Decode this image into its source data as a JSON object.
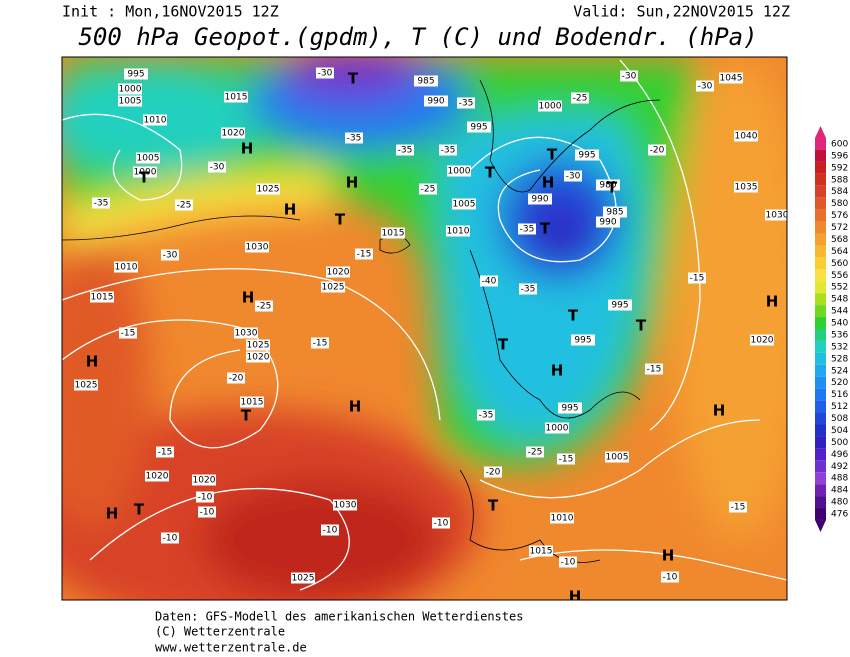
{
  "header": {
    "init": "Init : Mon,16NOV2015 12Z",
    "valid": "Valid: Sun,22NOV2015 12Z",
    "title": "500 hPa Geopot.(gpdm), T (C) und Bodendr. (hPa)"
  },
  "colorbar": {
    "ticks": [
      600,
      596,
      592,
      588,
      584,
      580,
      576,
      572,
      568,
      564,
      560,
      556,
      552,
      548,
      544,
      540,
      536,
      532,
      528,
      524,
      520,
      516,
      512,
      508,
      504,
      500,
      496,
      492,
      488,
      484,
      480,
      476
    ],
    "colors": [
      "#e0267a",
      "#c0103a",
      "#c81e1e",
      "#d03020",
      "#d84228",
      "#e05a28",
      "#e8702a",
      "#f0882e",
      "#f5a030",
      "#f8b830",
      "#fad030",
      "#fae040",
      "#e0e830",
      "#a8e020",
      "#70d820",
      "#30d030",
      "#20d080",
      "#20d0c0",
      "#20c0e0",
      "#20a8f0",
      "#2090f0",
      "#2078f0",
      "#2060e8",
      "#2048d8",
      "#2030c8",
      "#3020c0",
      "#5020c8",
      "#7030d0",
      "#9040d8",
      "#7020b0",
      "#501090",
      "#400070"
    ]
  },
  "map": {
    "pressure_labels": [
      995,
      1000,
      1005,
      1010,
      1015,
      1020,
      1005,
      1000,
      1025,
      1030,
      1020,
      1025,
      1015,
      1010,
      1005,
      1000,
      995,
      990,
      985,
      1000,
      995,
      990,
      980,
      985,
      990,
      995,
      995,
      1000,
      1005,
      1010,
      1015,
      1025,
      1030,
      1020,
      1020,
      1015,
      1020,
      1025,
      1030,
      1025,
      1015,
      1010,
      1040,
      1035,
      1030,
      1045,
      1020,
      995
    ],
    "temperature_labels": [
      -30,
      -35,
      -30,
      -35,
      -25,
      -30,
      -25,
      -15,
      -20,
      -15,
      -15,
      -10,
      -10,
      -10,
      -10,
      -10,
      -20,
      -15,
      -10,
      -10,
      -15,
      -15,
      -25,
      -35,
      -35,
      -40,
      -35,
      -30,
      -35,
      -35,
      -35,
      -25,
      -15,
      -30,
      -30,
      -20,
      -15,
      -25
    ],
    "centers": [
      "H",
      "T",
      "H",
      "T",
      "H",
      "H",
      "H",
      "T",
      "H",
      "H",
      "T",
      "T",
      "H",
      "T",
      "T",
      "T",
      "T",
      "T",
      "H",
      "H",
      "T",
      "H",
      "H",
      "H",
      "T",
      "T"
    ]
  },
  "footer": {
    "lines": [
      "Daten: GFS-Modell des amerikanischen Wetterdienstes",
      "(C) Wetterzentrale",
      "www.wetterzentrale.de"
    ]
  }
}
